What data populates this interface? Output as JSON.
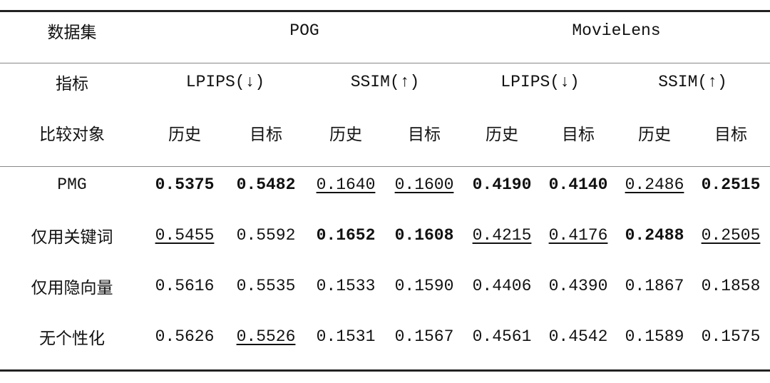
{
  "header": {
    "dataset_label": "数据集",
    "datasets": [
      "POG",
      "MovieLens"
    ],
    "metric_label": "指标",
    "metrics": [
      "LPIPS(↓)",
      "SSIM(↑)",
      "LPIPS(↓)",
      "SSIM(↑)"
    ],
    "compare_label": "比较对象",
    "compare": [
      "历史",
      "目标",
      "历史",
      "目标",
      "历史",
      "目标",
      "历史",
      "目标"
    ]
  },
  "rows": [
    {
      "label": "PMG",
      "values": [
        "0.5375",
        "0.5482",
        "0.1640",
        "0.1600",
        "0.4190",
        "0.4140",
        "0.2486",
        "0.2515"
      ],
      "bold": [
        0,
        1,
        4,
        5,
        7
      ],
      "underline": [
        2,
        3,
        6
      ]
    },
    {
      "label": "仅用关键词",
      "values": [
        "0.5455",
        "0.5592",
        "0.1652",
        "0.1608",
        "0.4215",
        "0.4176",
        "0.2488",
        "0.2505"
      ],
      "bold": [
        2,
        3,
        6
      ],
      "underline": [
        0,
        4,
        5,
        7
      ]
    },
    {
      "label": "仅用隐向量",
      "values": [
        "0.5616",
        "0.5535",
        "0.1533",
        "0.1590",
        "0.4406",
        "0.4390",
        "0.1867",
        "0.1858"
      ],
      "bold": [],
      "underline": []
    },
    {
      "label": "无个性化",
      "values": [
        "0.5626",
        "0.5526",
        "0.1531",
        "0.1567",
        "0.4561",
        "0.4542",
        "0.1589",
        "0.1575"
      ],
      "bold": [],
      "underline": [
        1
      ]
    }
  ]
}
